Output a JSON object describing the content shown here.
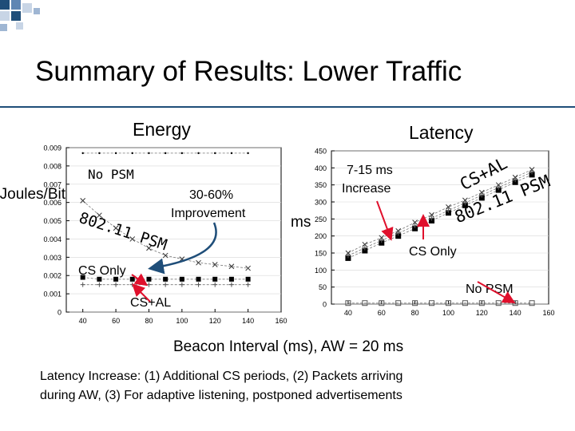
{
  "slide": {
    "title": "Summary of Results: Lower Traffic",
    "energy_heading": "Energy",
    "latency_heading": "Latency",
    "x_axis_caption": "Beacon Interval (ms), AW = 20 ms",
    "footnote_line1": "Latency Increase: (1) Additional CS periods, (2) Packets arriving",
    "footnote_line2": "during AW, (3) For adaptive listening, postponed advertisements",
    "accent_color": "#1f4e79",
    "arrow_color": "#e0102c"
  },
  "energy_annotations": {
    "y_axis_label": "Joules/Bit",
    "no_psm": "No PSM",
    "psm": "802.11 PSM",
    "improvement_line1": "30-60%",
    "improvement_line2": "Improvement",
    "cs_only": "CS Only",
    "cs_al": "CS+AL"
  },
  "latency_annotations": {
    "y_axis_label": "ms",
    "increase_line1": "7-15 ms",
    "increase_line2": "Increase",
    "cs_al": "CS+AL",
    "psm": "802.11 PSM",
    "cs_only": "CS Only",
    "no_psm": "No PSM"
  },
  "chart_data": [
    {
      "type": "line",
      "name": "energy",
      "title": "Energy",
      "xlabel": "Beacon Interval (ms), AW = 20 ms",
      "ylabel": "Joules/Bit",
      "xlim": [
        30,
        160
      ],
      "ylim": [
        0,
        0.009
      ],
      "x_ticks": [
        "40",
        "60",
        "80",
        "100",
        "120",
        "140",
        "160"
      ],
      "y_ticks": [
        "0",
        "0.001",
        "0.002",
        "0.003",
        "0.004",
        "0.005",
        "0.006",
        "0.007",
        "0.008",
        "0.009"
      ],
      "x": [
        40,
        50,
        60,
        70,
        80,
        90,
        100,
        110,
        120,
        130,
        140
      ],
      "series": [
        {
          "name": "No PSM",
          "marker": "dot",
          "values": [
            0.0087,
            0.0087,
            0.0087,
            0.0087,
            0.0087,
            0.0087,
            0.0087,
            0.0087,
            0.0087,
            0.0087,
            0.0087
          ]
        },
        {
          "name": "802.11 PSM",
          "marker": "x",
          "values": [
            0.0061,
            0.0053,
            0.0046,
            0.004,
            0.0035,
            0.0031,
            0.0029,
            0.0027,
            0.0026,
            0.0025,
            0.0024
          ]
        },
        {
          "name": "CS Only",
          "marker": "square",
          "values": [
            0.0019,
            0.0018,
            0.0018,
            0.0018,
            0.0018,
            0.0018,
            0.0018,
            0.0018,
            0.0018,
            0.0018,
            0.0018
          ]
        },
        {
          "name": "CS+AL",
          "marker": "plus",
          "values": [
            0.0015,
            0.0015,
            0.0015,
            0.0015,
            0.0015,
            0.0015,
            0.0015,
            0.0015,
            0.0015,
            0.0015,
            0.0015
          ]
        }
      ]
    },
    {
      "type": "line",
      "name": "latency",
      "title": "Latency",
      "xlabel": "Beacon Interval (ms), AW = 20 ms",
      "ylabel": "ms",
      "xlim": [
        30,
        160
      ],
      "ylim": [
        0,
        450
      ],
      "x_ticks": [
        "40",
        "60",
        "80",
        "100",
        "120",
        "140",
        "160"
      ],
      "y_ticks": [
        "0",
        "50",
        "100",
        "150",
        "200",
        "250",
        "300",
        "350",
        "400",
        "450"
      ],
      "x": [
        40,
        50,
        60,
        70,
        80,
        90,
        100,
        110,
        120,
        130,
        140,
        150
      ],
      "series": [
        {
          "name": "802.11 PSM",
          "marker": "x",
          "values": [
            150,
            175,
            195,
            215,
            240,
            262,
            285,
            305,
            328,
            350,
            372,
            395
          ]
        },
        {
          "name": "CS Only",
          "marker": "square-filled",
          "values": [
            135,
            157,
            180,
            200,
            222,
            245,
            268,
            290,
            312,
            335,
            358,
            380
          ]
        },
        {
          "name": "CS+AL",
          "marker": "plus",
          "values": [
            142,
            165,
            187,
            208,
            230,
            252,
            275,
            297,
            320,
            342,
            365,
            388
          ]
        },
        {
          "name": "No PSM",
          "marker": "square-open",
          "values": [
            3,
            3,
            3,
            3,
            3,
            3,
            3,
            3,
            3,
            3,
            3,
            3
          ]
        }
      ]
    }
  ]
}
